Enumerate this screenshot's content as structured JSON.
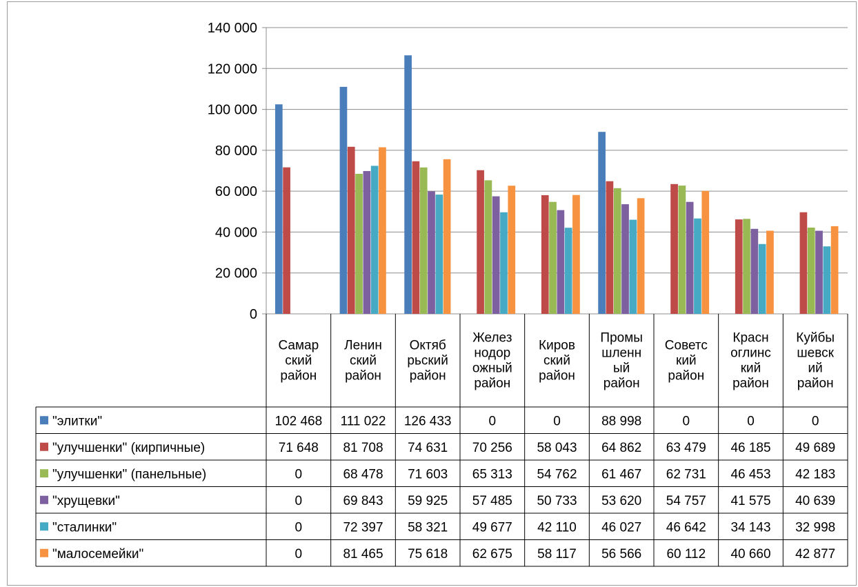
{
  "chart_data": {
    "type": "bar",
    "categories": [
      [
        "Самар",
        "ский",
        "район"
      ],
      [
        "Ленин",
        "ский",
        "район"
      ],
      [
        "Октяб",
        "рьский",
        "район"
      ],
      [
        "Желез",
        "нодор",
        "ожный",
        "район"
      ],
      [
        "Киров",
        "ский",
        "район"
      ],
      [
        "Промы",
        "шленн",
        "ый",
        "район"
      ],
      [
        "Советс",
        "кий",
        "район"
      ],
      [
        "Красн",
        "оглинс",
        "кий",
        "район"
      ],
      [
        "Куйбы",
        "шевск",
        "ий",
        "район"
      ]
    ],
    "series": [
      {
        "name": "\"элитки\"",
        "color": "#4A7EBB",
        "values": [
          102468,
          111022,
          126433,
          0,
          0,
          88998,
          0,
          0,
          0
        ],
        "labels": [
          "102 468",
          "111 022",
          "126 433",
          "0",
          "0",
          "88 998",
          "0",
          "0",
          "0"
        ]
      },
      {
        "name": "\"улучшенки\" (кирпичные)",
        "color": "#BE4B48",
        "values": [
          71648,
          81708,
          74631,
          70256,
          58043,
          64862,
          63479,
          46185,
          49689
        ],
        "labels": [
          "71 648",
          "81 708",
          "74 631",
          "70 256",
          "58 043",
          "64 862",
          "63 479",
          "46 185",
          "49 689"
        ]
      },
      {
        "name": "\"улучшенки\" (панельные)",
        "color": "#98B954",
        "values": [
          0,
          68478,
          71603,
          65313,
          54762,
          61467,
          62731,
          46453,
          42183
        ],
        "labels": [
          "0",
          "68 478",
          "71 603",
          "65 313",
          "54 762",
          "61 467",
          "62 731",
          "46 453",
          "42 183"
        ]
      },
      {
        "name": "\"хрущевки\"",
        "color": "#7D60A0",
        "values": [
          0,
          69843,
          59925,
          57485,
          50733,
          53620,
          54757,
          41575,
          40639
        ],
        "labels": [
          "0",
          "69 843",
          "59 925",
          "57 485",
          "50 733",
          "53 620",
          "54 757",
          "41 575",
          "40 639"
        ]
      },
      {
        "name": "\"сталинки\"",
        "color": "#46AAC5",
        "values": [
          0,
          72397,
          58321,
          49677,
          42110,
          46027,
          46642,
          34143,
          32998
        ],
        "labels": [
          "0",
          "72 397",
          "58 321",
          "49 677",
          "42 110",
          "46 027",
          "46 642",
          "34 143",
          "32 998"
        ]
      },
      {
        "name": "\"малосемейки\"",
        "color": "#F69240",
        "values": [
          0,
          81465,
          75618,
          62675,
          58117,
          56566,
          60112,
          40660,
          42877
        ],
        "labels": [
          "0",
          "81 465",
          "75 618",
          "62 675",
          "58 117",
          "56 566",
          "60 112",
          "40 660",
          "42 877"
        ]
      }
    ],
    "ylim": [
      0,
      140000
    ],
    "yticks": [
      0,
      20000,
      40000,
      60000,
      80000,
      100000,
      120000,
      140000
    ],
    "ytick_labels": [
      "0",
      "20 000",
      "40 000",
      "60 000",
      "80 000",
      "100 000",
      "120 000",
      "140 000"
    ],
    "grid": true,
    "legend": "data-table",
    "title": "",
    "xlabel": "",
    "ylabel": ""
  }
}
